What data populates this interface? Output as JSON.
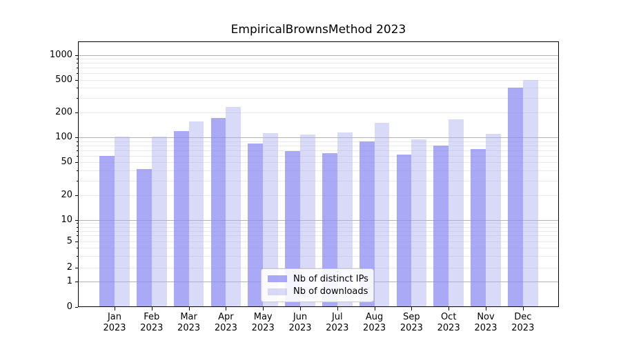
{
  "title": "EmpiricalBrownsMethod 2023",
  "chart_data": {
    "type": "bar",
    "categories": [
      "Jan",
      "Feb",
      "Mar",
      "Apr",
      "May",
      "Jun",
      "Jul",
      "Aug",
      "Sep",
      "Oct",
      "Nov",
      "Dec"
    ],
    "category_year": "2023",
    "series": [
      {
        "name": "Nb of distinct IPs",
        "color": "rgba(136,136,243,0.72)",
        "values": [
          60,
          41,
          120,
          172,
          84,
          68,
          64,
          89,
          62,
          79,
          73,
          400
        ]
      },
      {
        "name": "Nb of downloads",
        "color": "rgba(171,171,239,0.45)",
        "values": [
          102,
          102,
          157,
          236,
          112,
          109,
          115,
          150,
          94,
          167,
          110,
          500
        ]
      }
    ],
    "y_axis": {
      "scale": "symlog",
      "tick_labels": [
        0,
        1,
        2,
        5,
        10,
        20,
        50,
        100,
        200,
        500,
        1000
      ],
      "major_gridlines": [
        1,
        10,
        100,
        1000
      ],
      "ylim": [
        0,
        1450
      ]
    },
    "xlabel": "",
    "ylabel": "",
    "grid": true,
    "legend_position": "lower center"
  },
  "colors": {
    "minor_grid": "#e9e9e9",
    "major_grid": "#b2b2b2",
    "axis": "#000000",
    "background": "#ffffff"
  }
}
